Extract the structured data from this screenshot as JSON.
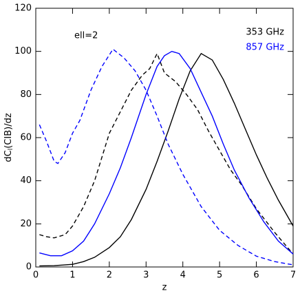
{
  "chart_data": {
    "type": "line",
    "xlabel": "z",
    "ylabel": [
      "dC",
      "l",
      "(CIB)/dz"
    ],
    "annotation": "ell=2",
    "xlim": [
      0,
      7
    ],
    "ylim": [
      0,
      120
    ],
    "xticks": [
      0,
      1,
      2,
      3,
      4,
      5,
      6,
      7
    ],
    "yticks": [
      0,
      20,
      40,
      60,
      80,
      100,
      120
    ],
    "legend": [
      {
        "name": "353 GHz",
        "color": "#000000"
      },
      {
        "name": "857 GHz",
        "color": "#0000ff"
      }
    ],
    "series": [
      {
        "color": "#000000",
        "dash": false,
        "x": [
          0.1,
          0.5,
          1.0,
          1.3,
          1.6,
          2.0,
          2.3,
          2.6,
          3.0,
          3.3,
          3.6,
          3.9,
          4.2,
          4.5,
          4.8,
          5.1,
          5.4,
          5.7,
          6.0,
          6.3,
          6.6,
          7.0
        ],
        "values": [
          0.5,
          0.6,
          1.2,
          2.5,
          4.5,
          9,
          14,
          22,
          36,
          49,
          63,
          78,
          91,
          99,
          96,
          87,
          76,
          64,
          52,
          41,
          31,
          19
        ]
      },
      {
        "color": "#000000",
        "dash": true,
        "x": [
          0.1,
          0.3,
          0.5,
          0.8,
          1.0,
          1.3,
          1.6,
          2.0,
          2.3,
          2.6,
          2.9,
          3.1,
          3.3,
          3.5,
          3.8,
          4.1,
          4.4,
          4.7,
          5.0,
          5.3,
          5.6,
          6.0,
          6.5,
          7.0
        ],
        "values": [
          15,
          14,
          13.5,
          15,
          19,
          28,
          40,
          62,
          72,
          82,
          89,
          92,
          99,
          90,
          86,
          80,
          73,
          63,
          54,
          45,
          38,
          27,
          16,
          6
        ]
      },
      {
        "color": "#0000ff",
        "dash": false,
        "x": [
          0.1,
          0.4,
          0.7,
          1.0,
          1.3,
          1.6,
          2.0,
          2.3,
          2.6,
          3.0,
          3.3,
          3.5,
          3.7,
          3.9,
          4.2,
          4.5,
          4.8,
          5.1,
          5.4,
          5.8,
          6.2,
          6.6,
          7.0
        ],
        "values": [
          6.5,
          5.2,
          5.2,
          7.5,
          12,
          20,
          34,
          46,
          60,
          80,
          93,
          98,
          100,
          99,
          92,
          81,
          70,
          57,
          45,
          32,
          21,
          12,
          6
        ]
      },
      {
        "color": "#0000ff",
        "dash": true,
        "x": [
          0.1,
          0.3,
          0.5,
          0.6,
          0.8,
          1.0,
          1.2,
          1.5,
          1.8,
          2.1,
          2.4,
          2.7,
          3.0,
          3.3,
          3.6,
          4.0,
          4.5,
          5.0,
          5.5,
          6.0,
          6.5,
          7.0
        ],
        "values": [
          66,
          58,
          49,
          48,
          53,
          62,
          68,
          82,
          93,
          101,
          97,
          91,
          82,
          70,
          57,
          43,
          28,
          17,
          10,
          5,
          2.5,
          1
        ]
      }
    ]
  }
}
